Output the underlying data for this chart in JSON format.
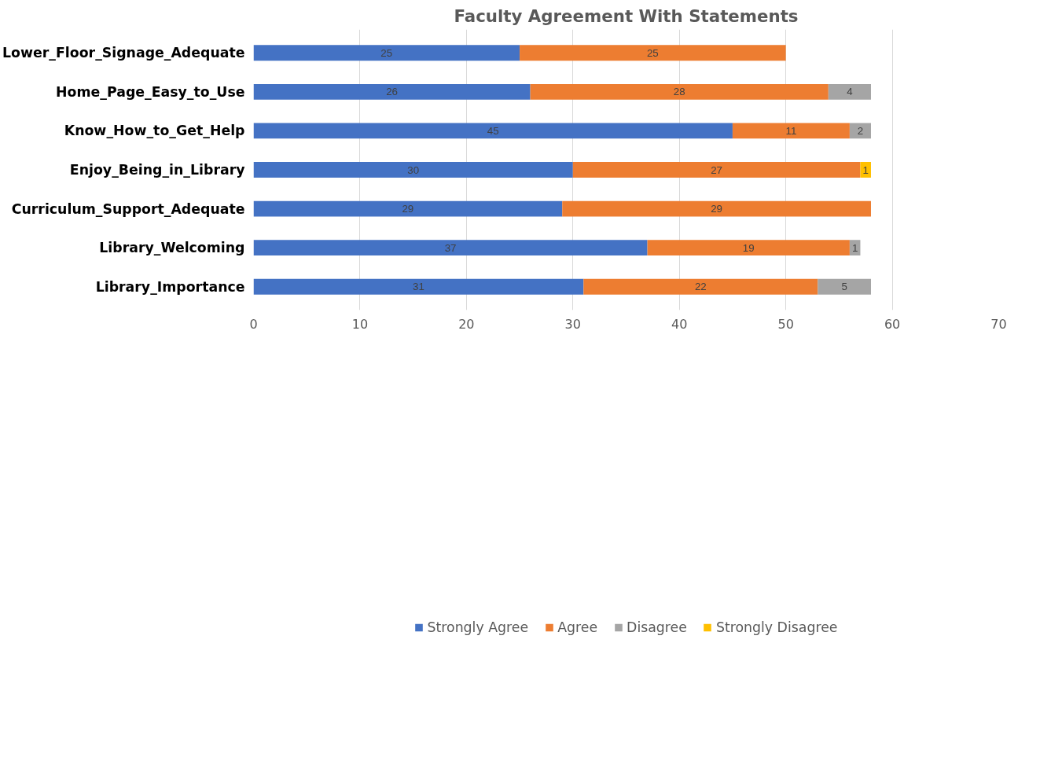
{
  "chart_data": {
    "type": "bar",
    "orientation": "horizontal",
    "stacked": true,
    "title": "Faculty Agreement With Statements",
    "categories": [
      "Lower_Floor_Signage_Adequate",
      "Home_Page_Easy_to_Use",
      "Know_How_to_Get_Help",
      "Enjoy_Being_in_Library",
      "Curriculum_Support_Adequate",
      "Library_Welcoming",
      "Library_Importance"
    ],
    "series": [
      {
        "name": "Strongly Agree",
        "color": "#4472c4",
        "values": [
          25,
          26,
          45,
          30,
          29,
          37,
          31
        ]
      },
      {
        "name": "Agree",
        "color": "#ed7d31",
        "values": [
          25,
          28,
          11,
          27,
          29,
          19,
          22
        ]
      },
      {
        "name": "Disagree",
        "color": "#a5a5a5",
        "values": [
          null,
          4,
          2,
          null,
          null,
          1,
          5
        ]
      },
      {
        "name": "Strongly Disagree",
        "color": "#ffc000",
        "values": [
          null,
          null,
          null,
          1,
          null,
          null,
          null
        ]
      }
    ],
    "xlim": [
      0,
      70
    ],
    "xticks": [
      0,
      10,
      20,
      30,
      40,
      50,
      60,
      70
    ],
    "grid": "x",
    "legend": "bottom",
    "data_labels": true
  }
}
